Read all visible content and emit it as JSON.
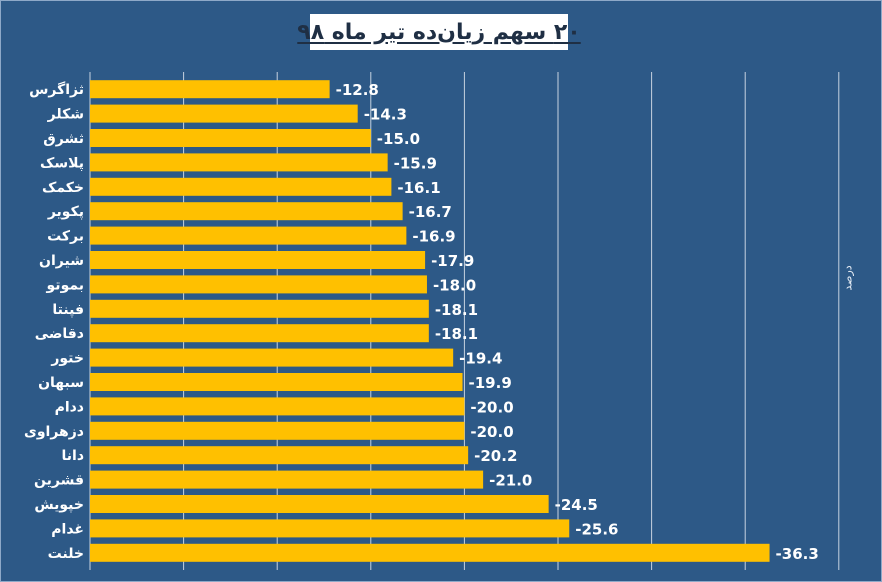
{
  "chart_data": {
    "type": "bar",
    "orientation": "horizontal",
    "title": "۲۰ سهم زیان‌ده تیر ماه ۹۸",
    "ylabel": "درصد",
    "categories": [
      "ثزاگرس",
      "شکلر",
      "ثشرق",
      "پلاسک",
      "خکمک",
      "پکویر",
      "برکت",
      "شیران",
      "بموتو",
      "فپنتا",
      "دقاضی",
      "ختور",
      "سبهان",
      "ددام",
      "دزهراوی",
      "دانا",
      "قشرین",
      "خپویش",
      "غدام",
      "خلنت"
    ],
    "values": [
      -12.8,
      -14.3,
      -15.0,
      -15.9,
      -16.1,
      -16.7,
      -16.9,
      -17.9,
      -18.0,
      -18.1,
      -18.1,
      -19.4,
      -19.9,
      -20.0,
      -20.0,
      -20.2,
      -21.0,
      -24.5,
      -25.6,
      -36.3
    ],
    "value_labels": [
      "-12.8",
      "-14.3",
      "-15.0",
      "-15.9",
      "-16.1",
      "-16.7",
      "-16.9",
      "-17.9",
      "-18.0",
      "-18.1",
      "-18.1",
      "-19.4",
      "-19.9",
      "-20.0",
      "-20.0",
      "-20.2",
      "-21.0",
      "-24.5",
      "-25.6",
      "-36.3"
    ],
    "xlim": [
      0,
      -40
    ],
    "grid": true,
    "bar_color": "#ffc000",
    "background_color": "#2d5987"
  }
}
